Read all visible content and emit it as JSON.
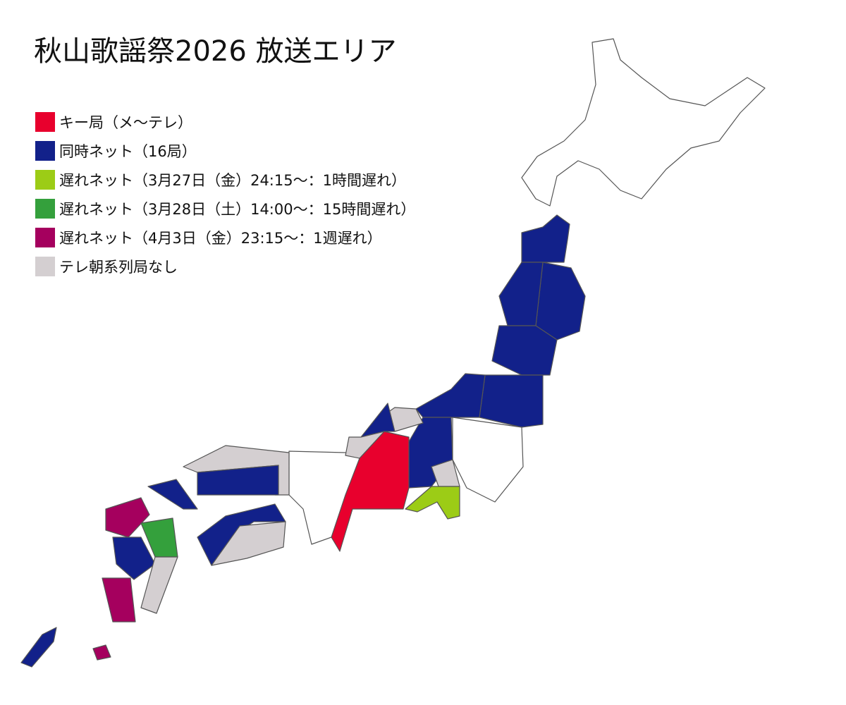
{
  "title": "秋山歌謡祭2026 放送エリア",
  "legend": [
    {
      "label": "キー局（メ〜テレ）",
      "color": "#e8002d"
    },
    {
      "label": "同時ネット（16局）",
      "color": "#12218a"
    },
    {
      "label": "遅れネット（3月27日（金）24:15〜：1時間遅れ）",
      "color": "#9ccc16"
    },
    {
      "label": "遅れネット（3月28日（土）14:00〜：15時間遅れ）",
      "color": "#34a03c"
    },
    {
      "label": "遅れネット（4月3日（金）23:15〜：1週遅れ）",
      "color": "#a5005e"
    },
    {
      "label": "テレ朝系列局なし",
      "color": "#d4cfd1"
    }
  ],
  "colors": {
    "not_covered_fill": "#ffffff",
    "border": "#555555"
  }
}
